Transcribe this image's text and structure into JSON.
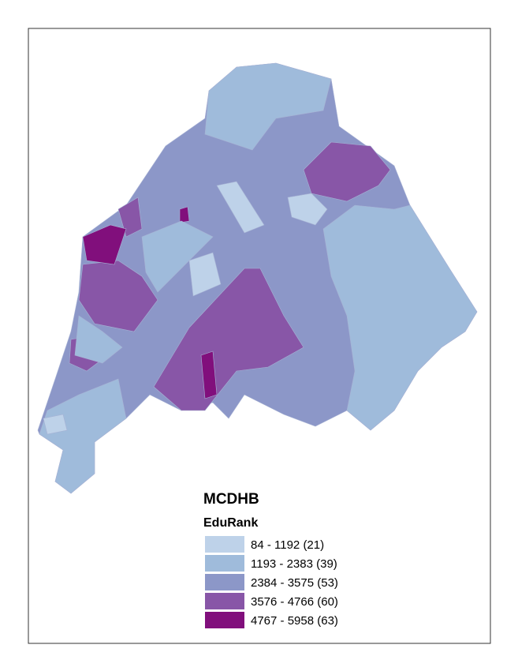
{
  "legend": {
    "title": "MCDHB",
    "field": "EduRank",
    "items": [
      {
        "label": "84 - 1192 (21)",
        "color": "#bed2e9"
      },
      {
        "label": "1193 - 2383 (39)",
        "color": "#9fbbdb"
      },
      {
        "label": "2384 - 3575 (53)",
        "color": "#8c97c8"
      },
      {
        "label": "3576 - 4766 (60)",
        "color": "#8856a7"
      },
      {
        "label": "4767 - 5958 (63)",
        "color": "#810f7c"
      }
    ]
  }
}
